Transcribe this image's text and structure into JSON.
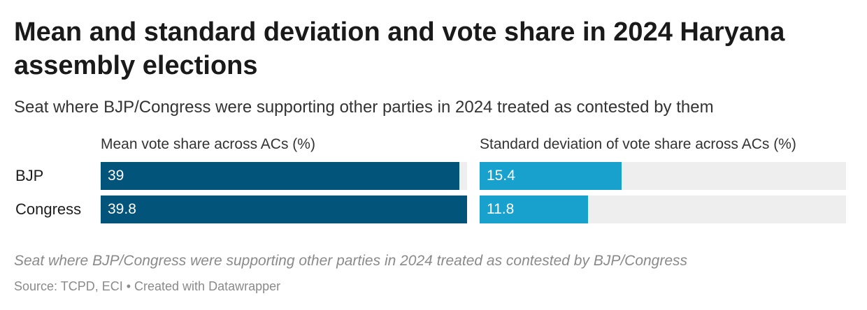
{
  "title": "Mean and standard deviation and vote share in 2024 Haryana assembly elections",
  "subtitle": "Seat where BJP/Congress were supporting other parties in 2024 treated as contested by them",
  "footer": {
    "note": "Seat where BJP/Congress were supporting other parties in 2024 treated as contested by BJP/Congress",
    "source": "Source: TCPD, ECI • Created with Datawrapper"
  },
  "chart_data": {
    "type": "bar",
    "orientation": "horizontal",
    "categories": [
      "BJP",
      "Congress"
    ],
    "series": [
      {
        "name": "Mean vote share across ACs (%)",
        "values": [
          39,
          39.8
        ],
        "labels": [
          "39",
          "39.8"
        ],
        "color": "#03547a",
        "xlim": [
          0,
          39.8
        ]
      },
      {
        "name": "Standard deviation of vote share across ACs (%)",
        "values": [
          15.4,
          11.8
        ],
        "labels": [
          "15.4",
          "11.8"
        ],
        "color": "#18a1cd",
        "xlim": [
          0,
          39.8
        ]
      }
    ],
    "background_track_color": "#eeeeee",
    "grid": false
  }
}
